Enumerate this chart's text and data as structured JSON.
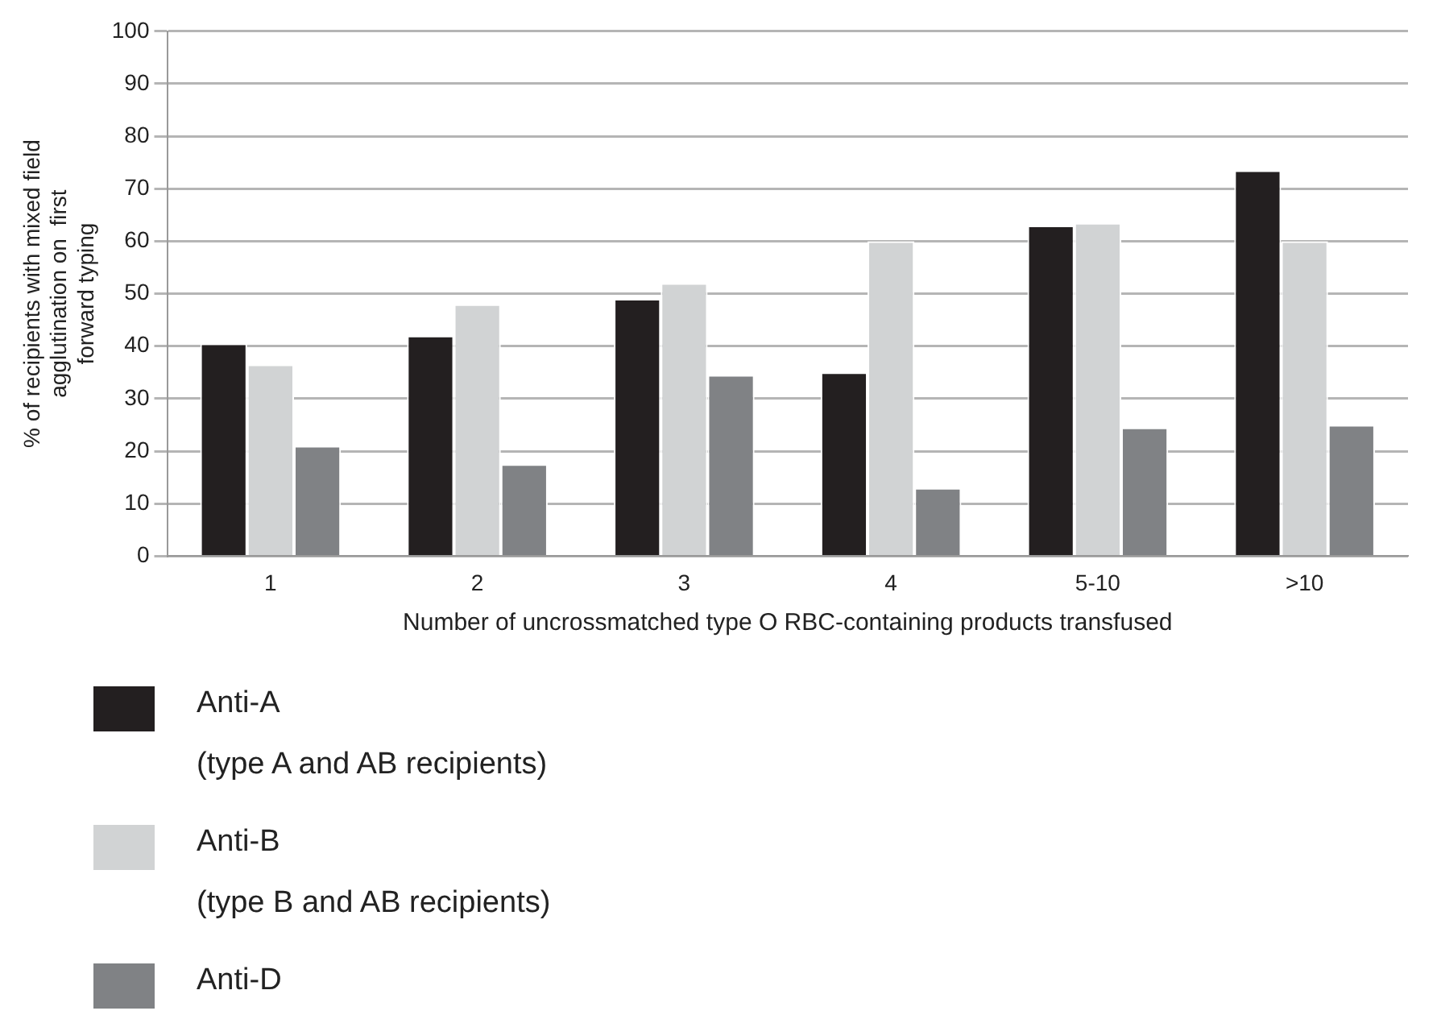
{
  "chart_data": {
    "type": "bar",
    "xlabel": "Number of uncrossmatched type O RBC-containing products transfused",
    "ylabel": "% of recipients with mixed field\nagglutination on  first\nforward typing",
    "categories": [
      "1",
      "2",
      "3",
      "4",
      "5-10",
      ">10"
    ],
    "series": [
      {
        "name": "Anti-A\n(type A and AB recipients)",
        "color": "#231f20",
        "values": [
          40.5,
          42,
          49,
          35,
          63,
          73.5
        ]
      },
      {
        "name": "Anti-B\n(type B and AB recipients)",
        "color": "#d1d3d4",
        "values": [
          36.5,
          48,
          52,
          60,
          63.5,
          60
        ]
      },
      {
        "name": "Anti-D",
        "color": "#808285",
        "values": [
          21,
          17.5,
          34.5,
          13,
          24.5,
          25
        ]
      }
    ],
    "ylim": [
      0,
      100
    ],
    "yticks": [
      0,
      10,
      20,
      30,
      40,
      50,
      60,
      70,
      80,
      90,
      100
    ],
    "grid": "y",
    "legend": "bottom"
  }
}
